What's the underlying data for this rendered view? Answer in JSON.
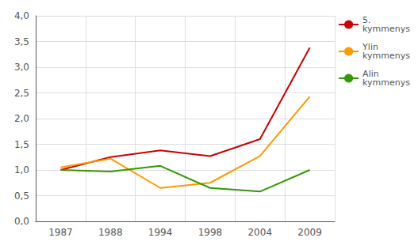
{
  "chart_data": {
    "type": "line",
    "categories": [
      "1987",
      "1988",
      "1994",
      "1998",
      "2004",
      "2009"
    ],
    "series": [
      {
        "name": "5.\nkymmenys",
        "color": "#cc0000",
        "values": [
          1.0,
          1.25,
          1.38,
          1.27,
          1.6,
          3.38
        ]
      },
      {
        "name": "Ylin\nkymmenys",
        "color": "#ff9900",
        "values": [
          1.05,
          1.22,
          0.65,
          0.75,
          1.27,
          2.43
        ]
      },
      {
        "name": "Alin\nkymmenys",
        "color": "#339900",
        "values": [
          1.0,
          0.97,
          1.08,
          0.65,
          0.58,
          1.0
        ]
      }
    ],
    "ylim": [
      0.0,
      4.0
    ],
    "yticks": [
      {
        "value": 0.0,
        "label": "0,0"
      },
      {
        "value": 0.5,
        "label": "0,5"
      },
      {
        "value": 1.0,
        "label": "1,0"
      },
      {
        "value": 1.5,
        "label": "1,5"
      },
      {
        "value": 2.0,
        "label": "2,0"
      },
      {
        "value": 2.5,
        "label": "2,5"
      },
      {
        "value": 3.0,
        "label": "3,0"
      },
      {
        "value": 3.5,
        "label": "3,5"
      },
      {
        "value": 4.0,
        "label": "4,0"
      }
    ],
    "grid": true,
    "legend": "upper right"
  }
}
